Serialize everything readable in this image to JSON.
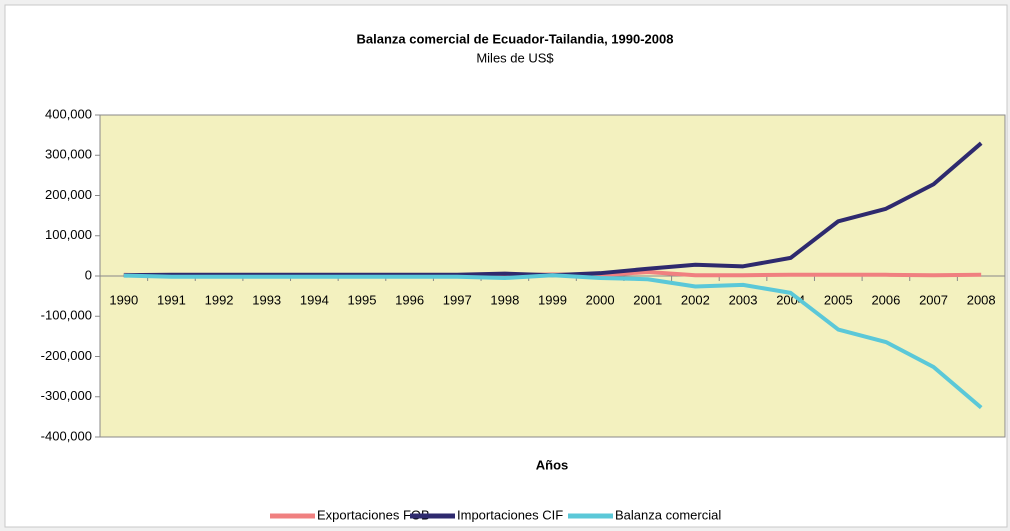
{
  "chart_data": {
    "type": "line",
    "title": "Balanza comercial de Ecuador-Tailandia, 1990-2008",
    "subtitle": "Miles de US$",
    "x_label": "Años",
    "categories": [
      "1990",
      "1991",
      "1992",
      "1993",
      "1994",
      "1995",
      "1996",
      "1997",
      "1998",
      "1999",
      "2000",
      "2001",
      "2002",
      "2003",
      "2004",
      "2005",
      "2006",
      "2007",
      "2008"
    ],
    "series": [
      {
        "name": "Exportaciones FOB",
        "color": "#f08080",
        "values": [
          3000,
          1000,
          1000,
          1000,
          1000,
          1000,
          1000,
          1000,
          1000,
          4000,
          2000,
          10000,
          2000,
          2000,
          3000,
          3000,
          3000,
          2000,
          3000
        ]
      },
      {
        "name": "Importaciones CIF",
        "color": "#2e2a6e",
        "values": [
          2000,
          3000,
          3000,
          3000,
          3000,
          3000,
          3000,
          3000,
          6000,
          2000,
          7000,
          18000,
          28000,
          24000,
          45000,
          136000,
          167000,
          228000,
          330000
        ]
      },
      {
        "name": "Balanza comercial",
        "color": "#5bc8d8",
        "values": [
          1000,
          -2000,
          -2000,
          -2000,
          -2000,
          -2000,
          -2000,
          -2000,
          -5000,
          2000,
          -5000,
          -8000,
          -26000,
          -22000,
          -42000,
          -133000,
          -164000,
          -226000,
          -327000
        ]
      }
    ],
    "ylim": [
      -400000,
      400000
    ],
    "yticks": [
      {
        "value": 400000,
        "label": "400,000"
      },
      {
        "value": 300000,
        "label": "300,000"
      },
      {
        "value": 200000,
        "label": "200,000"
      },
      {
        "value": 100000,
        "label": "100,000"
      },
      0,
      {
        "value": -100000,
        "label": "-100,000"
      },
      {
        "value": -200000,
        "label": "-200,000"
      },
      {
        "value": -300000,
        "label": "-300,000"
      },
      {
        "value": -400000,
        "label": "-400,000"
      }
    ],
    "legend": "bottom"
  }
}
